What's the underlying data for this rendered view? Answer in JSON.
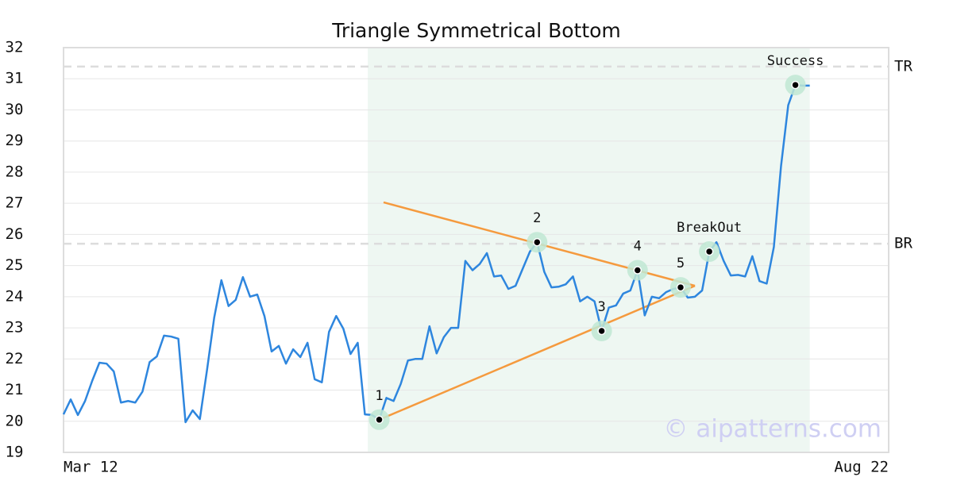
{
  "chart_data": {
    "type": "line",
    "title": "Triangle Symmetrical Bottom",
    "watermark": "© aipatterns.com",
    "color": "#2e86de",
    "grid": true,
    "x": [
      0,
      1,
      2,
      3,
      4,
      5,
      6,
      7,
      8,
      9,
      10,
      11,
      12,
      13,
      14,
      15,
      16,
      17,
      18,
      19,
      20,
      21,
      22,
      23,
      24,
      25,
      26,
      27,
      28,
      29,
      30,
      31,
      32,
      33,
      34,
      35,
      36,
      37,
      38,
      39,
      40,
      41,
      42,
      43,
      44,
      45,
      46,
      47,
      48,
      49,
      50,
      51,
      52,
      53,
      54,
      55,
      56,
      57,
      58,
      59,
      60,
      61,
      62,
      63,
      64,
      65,
      66,
      67,
      68,
      69,
      70,
      71,
      72,
      73,
      74,
      75,
      76,
      77,
      78,
      79,
      80,
      81,
      82,
      83,
      84,
      85,
      86,
      87,
      88,
      89,
      90,
      91,
      92,
      93,
      94,
      95,
      96,
      97,
      98,
      99,
      100,
      101,
      102,
      103,
      104
    ],
    "values": [
      20.22,
      20.7,
      20.2,
      20.65,
      21.3,
      21.88,
      21.85,
      21.6,
      20.6,
      20.65,
      20.6,
      20.95,
      21.9,
      22.08,
      22.75,
      22.72,
      22.65,
      19.97,
      20.35,
      20.07,
      21.65,
      23.33,
      24.53,
      23.7,
      23.9,
      24.63,
      24.0,
      24.07,
      23.38,
      22.24,
      22.42,
      21.85,
      22.31,
      22.06,
      22.52,
      21.35,
      21.25,
      22.87,
      23.38,
      22.97,
      22.16,
      22.52,
      20.22,
      20.2,
      20.05,
      20.75,
      20.65,
      21.2,
      21.95,
      22.0,
      22.0,
      23.05,
      22.18,
      22.7,
      23.0,
      23.0,
      25.15,
      24.85,
      25.05,
      25.4,
      24.65,
      24.68,
      24.25,
      24.35,
      24.9,
      25.45,
      25.75,
      24.8,
      24.3,
      24.32,
      24.4,
      24.65,
      23.85,
      24.0,
      23.85,
      22.9,
      23.65,
      23.72,
      24.1,
      24.2,
      24.85,
      23.4,
      24.0,
      23.95,
      24.15,
      24.25,
      24.3,
      23.97,
      24.0,
      24.2,
      25.45,
      25.75,
      25.15,
      24.68,
      24.7,
      24.65,
      25.3,
      24.5,
      24.42,
      25.6,
      28.2,
      30.15,
      30.8,
      30.78,
      30.78
    ],
    "xlim": [
      0,
      115
    ],
    "xticks": [
      {
        "value": 0,
        "label": "Mar 12"
      },
      {
        "value": 115,
        "label": "Aug 22"
      }
    ],
    "ylim": [
      19,
      32
    ],
    "yticks": [
      19,
      20,
      21,
      22,
      23,
      24,
      25,
      26,
      27,
      28,
      29,
      30,
      31,
      32
    ],
    "shaded_xrange": [
      42.4,
      104
    ],
    "shade_color": "#eef7f2",
    "trendlines": [
      {
        "color": "#f59a3e",
        "x": [
          44.6,
          88
        ],
        "values": [
          27.03,
          24.35
        ]
      },
      {
        "color": "#f59a3e",
        "x": [
          44,
          88
        ],
        "values": [
          20.05,
          24.35
        ]
      }
    ],
    "reference_lines": [
      {
        "label": "TR",
        "value": 31.39
      },
      {
        "label": "BR",
        "value": 25.7
      }
    ],
    "points": [
      {
        "label": "1",
        "x": 44,
        "y": 20.05
      },
      {
        "label": "2",
        "x": 66,
        "y": 25.75
      },
      {
        "label": "3",
        "x": 75,
        "y": 22.9
      },
      {
        "label": "4",
        "x": 80,
        "y": 24.85
      },
      {
        "label": "5",
        "x": 86,
        "y": 24.3
      },
      {
        "label": "BreakOut",
        "x": 90,
        "y": 25.45
      },
      {
        "label": "Success",
        "x": 102,
        "y": 30.8
      }
    ]
  }
}
